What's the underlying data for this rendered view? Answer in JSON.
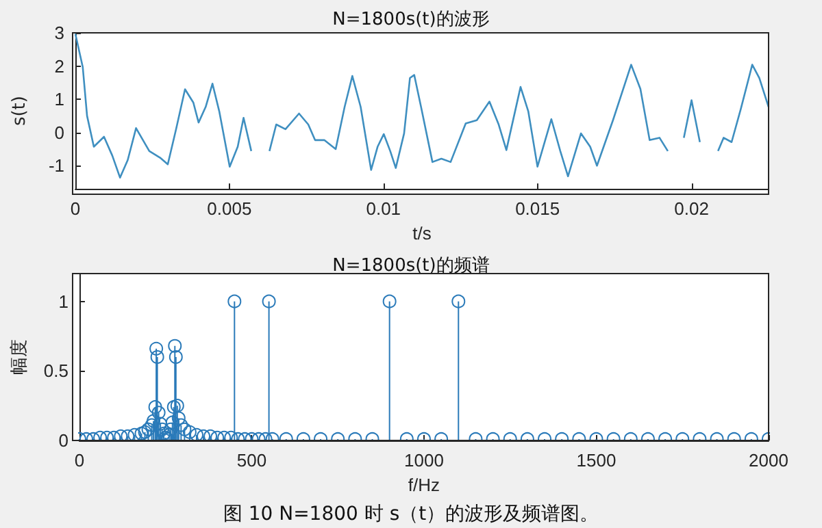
{
  "chart_data": [
    {
      "type": "line",
      "title": "N=1800s(t)的波形",
      "xlabel": "t/s",
      "ylabel": "s(t)",
      "xlim": [
        0,
        0.0225
      ],
      "xticks": [
        0,
        0.005,
        0.01,
        0.015,
        0.02
      ],
      "ylim": [
        -1.7,
        3
      ],
      "yticks": [
        -1,
        0,
        1,
        2,
        3
      ],
      "grid": false,
      "marker": "none",
      "line_style": "solid",
      "series": [
        {
          "color": "#3f8fc0",
          "x": [
            0,
            0.00024,
            0.00038,
            0.0006,
            0.00093,
            0.0012,
            0.00145,
            0.0017,
            0.00197,
            0.0024,
            0.00275,
            0.003,
            0.00327,
            0.00356,
            0.00383,
            0.004,
            0.00423,
            0.00445,
            0.00467,
            0.00501,
            0.00527,
            0.00546,
            0.00571,
            0.006,
            0.0063,
            0.00652,
            0.00682,
            0.00726,
            0.00756,
            0.00778,
            0.00808,
            0.00845,
            0.00874,
            0.00899,
            0.00926,
            0.0096,
            0.00981,
            0.01001,
            0.01022,
            0.0104,
            0.01067,
            0.01086,
            0.011,
            0.01122,
            0.01159,
            0.01188,
            0.01218,
            0.01267,
            0.01303,
            0.01344,
            0.01374,
            0.01399,
            0.01445,
            0.0147,
            0.015,
            0.01545,
            0.01574,
            0.01599,
            0.01641,
            0.01671,
            0.01693,
            0.01745,
            0.01804,
            0.01834,
            0.01864,
            0.01896,
            0.01923,
            0.01945,
            0.01975,
            0.02,
            0.02027,
            0.02056,
            0.02086,
            0.02104,
            0.0213,
            0.0216,
            0.02197,
            0.0222,
            0.0225
          ],
          "values": [
            2.97,
            1.97,
            0.5,
            -0.43,
            -0.13,
            -0.7,
            -1.36,
            -0.83,
            0.13,
            -0.56,
            -0.76,
            -0.96,
            0.1,
            1.3,
            0.9,
            0.3,
            0.77,
            1.47,
            0.64,
            -1.03,
            -0.43,
            0.44,
            -0.56,
            null,
            -0.56,
            0.24,
            0.1,
            0.57,
            0.24,
            -0.23,
            -0.23,
            -0.5,
            0.77,
            1.7,
            0.77,
            -1.13,
            -0.43,
            -0.05,
            -0.56,
            -1.07,
            -0.03,
            1.64,
            1.73,
            0.77,
            -0.89,
            -0.79,
            -0.89,
            0.27,
            0.37,
            0.93,
            0.24,
            -0.53,
            1.37,
            0.64,
            -1.03,
            0.4,
            -0.56,
            -1.32,
            -0.03,
            -0.43,
            -1.0,
            0.37,
            2.04,
            1.31,
            -0.23,
            -0.16,
            -0.56,
            null,
            -0.16,
            0.97,
            -0.29,
            null,
            -0.56,
            -0.16,
            -0.29,
            0.71,
            2.04,
            1.64,
            0.77
          ]
        }
      ]
    },
    {
      "type": "lollipop",
      "title": "N=1800s(t)的频谱",
      "xlabel": "f/Hz",
      "ylabel": "幅度",
      "xlim": [
        0,
        2000
      ],
      "xticks": [
        0,
        500,
        1000,
        1500,
        2000
      ],
      "ylim": [
        0,
        1.2
      ],
      "yticks": [
        0,
        0.5,
        1
      ],
      "grid": false,
      "marker": "circle",
      "annotations": [
        "图 10 N=1800 时 s（t）的波形及频谱图。"
      ],
      "series": [
        {
          "color": "#2a7ab9",
          "x": [
            0,
            20,
            40,
            60,
            80,
            100,
            120,
            140,
            160,
            180,
            190,
            200,
            210,
            215,
            220,
            223,
            226,
            230,
            235,
            240,
            245,
            250,
            255,
            260,
            265,
            270,
            274,
            277,
            280,
            284,
            288,
            295,
            305,
            320,
            340,
            360,
            380,
            400,
            420,
            440,
            450,
            460,
            480,
            500,
            520,
            540,
            550,
            560,
            600,
            650,
            700,
            750,
            800,
            850,
            900,
            950,
            1000,
            1050,
            1100,
            1150,
            1200,
            1250,
            1300,
            1350,
            1400,
            1450,
            1500,
            1550,
            1600,
            1650,
            1700,
            1750,
            1800,
            1850,
            1900,
            1950,
            2000
          ],
          "values": [
            0.01,
            0.01,
            0.01,
            0.02,
            0.02,
            0.02,
            0.03,
            0.03,
            0.04,
            0.05,
            0.06,
            0.08,
            0.11,
            0.14,
            0.24,
            0.66,
            0.6,
            0.2,
            0.12,
            0.08,
            0.05,
            0.02,
            0.01,
            0.04,
            0.08,
            0.13,
            0.24,
            0.68,
            0.6,
            0.25,
            0.16,
            0.11,
            0.08,
            0.06,
            0.04,
            0.03,
            0.03,
            0.02,
            0.02,
            0.02,
            1,
            0.01,
            0.01,
            0.01,
            0.01,
            0.01,
            1,
            0.01,
            0.01,
            0.01,
            0.01,
            0.01,
            0.01,
            0.01,
            1,
            0.01,
            0.01,
            0.01,
            1,
            0.01,
            0.01,
            0.01,
            0.01,
            0.01,
            0.01,
            0.01,
            0.01,
            0.01,
            0.01,
            0.01,
            0.01,
            0.01,
            0.01,
            0.01,
            0.01,
            0.01,
            0.01
          ]
        }
      ]
    }
  ]
}
